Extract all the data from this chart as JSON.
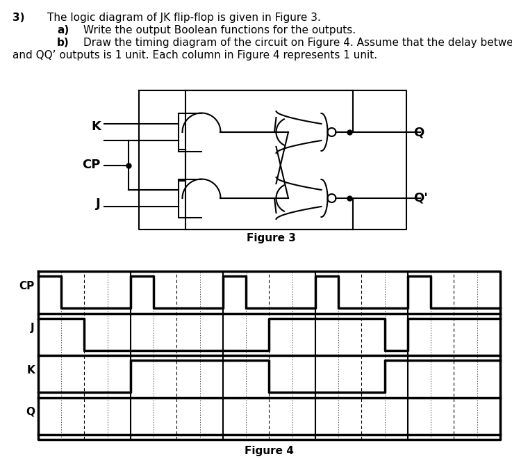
{
  "figure3_caption": "Figure 3",
  "figure4_caption": "Figure 4",
  "timing_labels": [
    "CP",
    "J",
    "K",
    "Q"
  ],
  "num_cols": 20,
  "cp_signal": [
    1,
    0,
    0,
    0,
    1,
    0,
    0,
    0,
    1,
    0,
    0,
    0,
    1,
    0,
    0,
    0,
    1,
    0,
    0,
    0
  ],
  "j_signal": [
    1,
    1,
    0,
    0,
    0,
    0,
    0,
    0,
    0,
    0,
    1,
    1,
    1,
    1,
    1,
    0,
    1,
    1,
    1,
    1
  ],
  "k_signal": [
    0,
    0,
    0,
    0,
    1,
    1,
    1,
    1,
    1,
    1,
    0,
    0,
    0,
    0,
    0,
    1,
    1,
    1,
    1,
    1
  ],
  "q_signal": [
    0,
    0,
    0,
    0,
    0,
    0,
    0,
    0,
    0,
    0,
    0,
    0,
    0,
    0,
    0,
    0,
    0,
    0,
    0,
    0
  ],
  "bg_color": "#ffffff",
  "text_color": "#000000"
}
